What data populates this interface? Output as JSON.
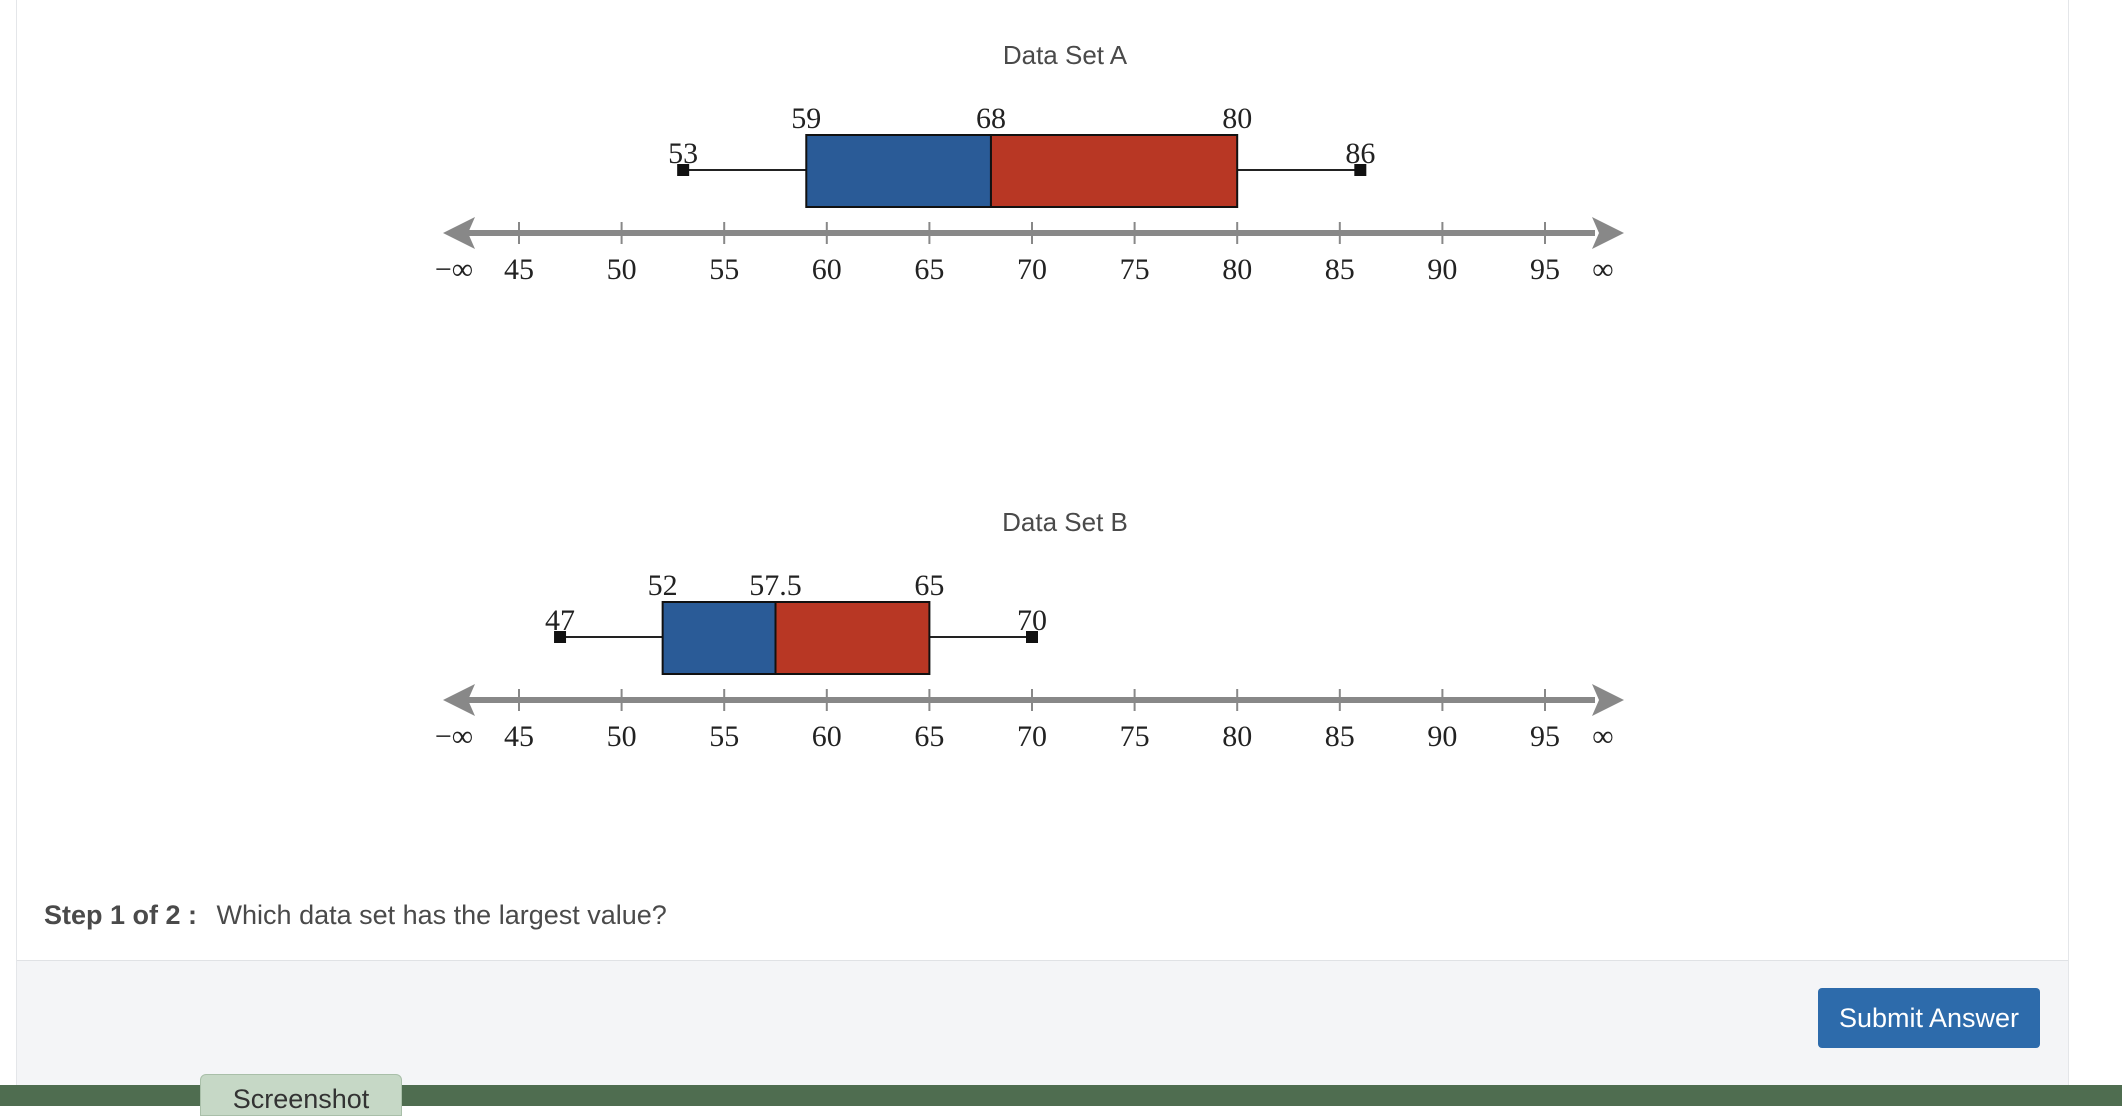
{
  "chart_data": [
    {
      "type": "box",
      "title": "Data Set A",
      "axis_ticks": [
        45,
        50,
        55,
        60,
        65,
        70,
        75,
        80,
        85,
        90,
        95
      ],
      "axis_end_labels": [
        "−∞",
        "∞"
      ],
      "xlim": [
        43,
        98
      ],
      "min": 53,
      "q1": 59,
      "median": 68,
      "q3": 80,
      "max": 86,
      "labels": {
        "min": "53",
        "q1": "59",
        "median": "68",
        "q3": "80",
        "max": "86"
      },
      "colors": {
        "lower_box": "#2a5b97",
        "upper_box": "#b83724"
      }
    },
    {
      "type": "box",
      "title": "Data Set B",
      "axis_ticks": [
        45,
        50,
        55,
        60,
        65,
        70,
        75,
        80,
        85,
        90,
        95
      ],
      "axis_end_labels": [
        "−∞",
        "∞"
      ],
      "xlim": [
        43,
        98
      ],
      "min": 47,
      "q1": 52,
      "median": 57.5,
      "q3": 65,
      "max": 70,
      "labels": {
        "min": "47",
        "q1": "52",
        "median": "57.5",
        "q3": "65",
        "max": "70"
      },
      "colors": {
        "lower_box": "#2a5b97",
        "upper_box": "#b83724"
      }
    }
  ],
  "question": {
    "step_label": "Step 1 of 2 :",
    "text": "Which data set has the largest value?"
  },
  "footer": {
    "submit_label": "Submit Answer",
    "screenshot_tab": "Screenshot"
  },
  "colors": {
    "accent": "#2d6bab",
    "footer_bar": "#4f6d50"
  }
}
